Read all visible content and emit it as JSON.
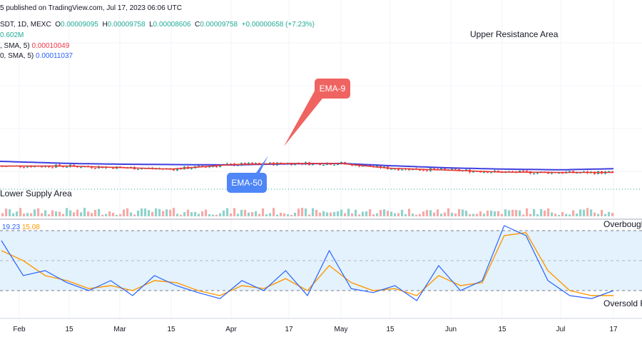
{
  "header": {
    "published": "5 published on TradingView.com, Jul 17, 2023 06:06 UTC",
    "symbol": "SDT, 1D, MEXC",
    "o_label": "O",
    "o_val": "0.00009095",
    "h_label": "H",
    "h_val": "0.00009758",
    "l_label": "L",
    "l_val": "0.00008606",
    "c_label": "C",
    "c_val": "0.00009758",
    "change": "+0.00000658 (+7.23%)",
    "volume": "0.602M",
    "ema9_label": ", SMA, 5)",
    "ema9_val": "0.00010049",
    "ema50_label": "0, SMA, 5)",
    "ema50_val": "0.00011037"
  },
  "annotations": {
    "upper": "Upper Resistance Area",
    "lower": "Lower Supply Area",
    "overbought": "Overbought",
    "oversold": "Oversold R",
    "ema9": "EMA-9",
    "ema50": "EMA-50"
  },
  "oscillator": {
    "k": "19.23",
    "d": "15.08",
    "upper_level": 80,
    "mid_level": 50,
    "lower_level": 20
  },
  "x_axis": {
    "ticks": [
      "Feb",
      "15",
      "Mar",
      "15",
      "Apr",
      "17",
      "May",
      "15",
      "Jun",
      "15",
      "Jul",
      "17"
    ]
  },
  "colors": {
    "up": "#26a69a",
    "down": "#ef5350",
    "ema9": "#e53935",
    "ema50": "#3f3fe0",
    "stoch_k": "#2962ff",
    "stoch_d": "#ff9800",
    "osc_band": "#e3f2fd",
    "callout_ema9": "#ef6461",
    "callout_ema50": "#4f86f7",
    "up_vol": "#8fd3cc",
    "down_vol": "#f7a9a7"
  },
  "chart_data": [
    {
      "type": "candlestick",
      "title": "SDT, 1D, MEXC",
      "last_close": 9.758e-05,
      "series": [
        {
          "name": "EMA-9",
          "values_at_ticks": [
            0.000117,
            0.000117,
            0.000113,
            0.000109,
            0.000121,
            0.000124,
            0.000124,
            0.000111,
            0.000106,
            0.000101,
            0.0001,
            0.0001
          ]
        },
        {
          "name": "EMA-50",
          "values_at_ticks": [
            0.000128,
            0.000124,
            0.000122,
            0.000121,
            0.00012,
            0.000123,
            0.000124,
            0.000118,
            0.000112,
            0.000109,
            0.000107,
            0.00011
          ]
        }
      ],
      "categories": [
        "Feb",
        "15",
        "Mar",
        "15",
        "Apr",
        "17",
        "May",
        "15",
        "Jun",
        "15",
        "Jul",
        "17"
      ]
    },
    {
      "type": "line",
      "title": "Stochastic",
      "levels": [
        80,
        50,
        20
      ],
      "series": [
        {
          "name": "19.23",
          "values": [
            70,
            35,
            40,
            28,
            20,
            30,
            15,
            35,
            25,
            18,
            12,
            30,
            20,
            40,
            15,
            60,
            22,
            18,
            25,
            10,
            45,
            20,
            30,
            85,
            75,
            30,
            15,
            12,
            20
          ]
        },
        {
          "name": "15.08",
          "values": [
            60,
            50,
            35,
            30,
            22,
            25,
            20,
            30,
            28,
            20,
            15,
            25,
            22,
            32,
            20,
            45,
            28,
            20,
            22,
            15,
            35,
            25,
            28,
            75,
            78,
            40,
            20,
            15,
            15
          ]
        }
      ]
    }
  ]
}
